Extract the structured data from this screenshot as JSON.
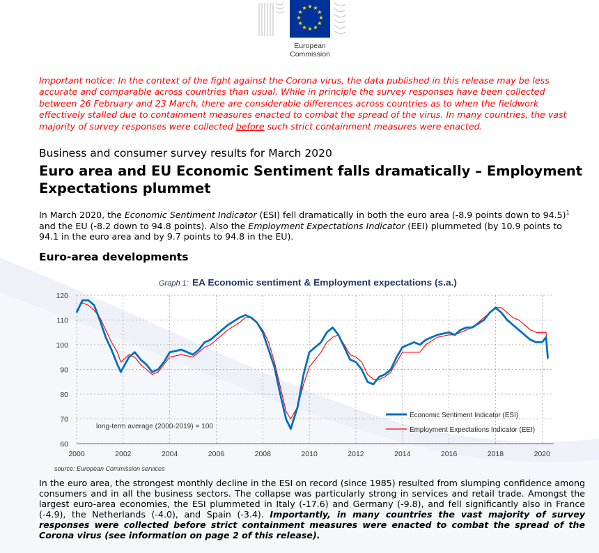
{
  "logo": {
    "line1": "European",
    "line2": "Commission",
    "flag_color": "#003399",
    "star_color": "#ffdd00"
  },
  "notice": {
    "part1": "Important notice: In the context of the fight against the Corona virus, the data published in this release may be less accurate and comparable across countries than usual. While in principle the survey responses have been collected between 26 February and 23 March, there are considerable differences across countries as to when the fieldwork effectively stalled due to containment measures enacted to combat the spread of the virus. In many countries, the vast majority of survey responses were collected ",
    "underlined": "before",
    "part2": " such strict containment measures were enacted."
  },
  "subtitle": "Business and consumer survey results for March 2020",
  "headline": "Euro area and EU Economic Sentiment falls dramatically – Employment Expectations plummet",
  "lead": {
    "t1": "In March 2020, the ",
    "i1": "Economic Sentiment Indicator",
    "t2": " (ESI) fell dramatically in both the euro area (-8.9 points down to 94.5)",
    "fn": "1",
    "t3": " and the EU (-8.2 down to 94.8 points). Also the ",
    "i2": "Employment Expectations Indicator",
    "t4": " (EEI) plummeted (by 10.9 points to 94.1 in the euro area and by 9.7 points to 94.8 in the EU)."
  },
  "section_title": "Euro-area developments",
  "chart_data": {
    "type": "line",
    "title_prefix": "Graph 1:",
    "title": "EA Economic sentiment & Employment expectations (s.a.)",
    "source": "source: European Commission services",
    "annotation": "long-term average (2000-2019) = 100",
    "x_ticks": [
      "2000",
      "2002",
      "2004",
      "2006",
      "2008",
      "2010",
      "2012",
      "2014",
      "2016",
      "2018",
      "2020"
    ],
    "y_ticks": [
      "60",
      "70",
      "80",
      "90",
      "100",
      "110",
      "120"
    ],
    "xlim": [
      2000,
      2020.5
    ],
    "ylim": [
      60,
      120
    ],
    "legend_position": "bottom-right",
    "series": [
      {
        "name": "Economic Sentiment Indicator (ESI)",
        "color": "#0070c0",
        "x": [
          2000.0,
          2000.25,
          2000.5,
          2000.75,
          2001.0,
          2001.25,
          2001.5,
          2001.75,
          2001.9,
          2002.25,
          2002.5,
          2002.75,
          2003.0,
          2003.25,
          2003.5,
          2003.75,
          2004.0,
          2004.5,
          2005.0,
          2005.25,
          2005.5,
          2005.75,
          2006.0,
          2006.5,
          2007.0,
          2007.25,
          2007.5,
          2007.75,
          2008.0,
          2008.25,
          2008.5,
          2008.75,
          2009.0,
          2009.2,
          2009.5,
          2009.75,
          2010.0,
          2010.5,
          2010.75,
          2011.0,
          2011.25,
          2011.5,
          2011.75,
          2012.0,
          2012.25,
          2012.5,
          2012.75,
          2013.0,
          2013.25,
          2013.5,
          2013.75,
          2014.0,
          2014.25,
          2014.5,
          2014.75,
          2015.0,
          2015.5,
          2016.0,
          2016.25,
          2016.5,
          2016.75,
          2017.0,
          2017.5,
          2017.75,
          2018.0,
          2018.25,
          2018.5,
          2018.75,
          2019.0,
          2019.25,
          2019.5,
          2019.75,
          2020.0,
          2020.17,
          2020.25
        ],
        "values": [
          113,
          118,
          118,
          116,
          110,
          103,
          98,
          92,
          89,
          95,
          97,
          94,
          92,
          89,
          90,
          93,
          97,
          98,
          96,
          98,
          101,
          102,
          104,
          108,
          111,
          112,
          111,
          109,
          105,
          98,
          91,
          80,
          70,
          66,
          75,
          88,
          97,
          101,
          105,
          107,
          104,
          99,
          94,
          93,
          90,
          85,
          84,
          87,
          88,
          90,
          95,
          99,
          100,
          101,
          100,
          102,
          104,
          105,
          104,
          106,
          107,
          107,
          110,
          113,
          115,
          113,
          110,
          108,
          106,
          104,
          102,
          101,
          101,
          103,
          94.5
        ]
      },
      {
        "name": "Employment Expectations Indicator (EEI)",
        "color": "#ff0000",
        "x": [
          2000.0,
          2000.25,
          2000.5,
          2000.75,
          2001.0,
          2001.25,
          2001.5,
          2001.75,
          2001.9,
          2002.25,
          2002.5,
          2002.75,
          2003.0,
          2003.25,
          2003.5,
          2003.75,
          2004.0,
          2004.5,
          2005.0,
          2005.25,
          2005.5,
          2005.75,
          2006.0,
          2006.5,
          2007.0,
          2007.25,
          2007.5,
          2007.75,
          2008.0,
          2008.25,
          2008.5,
          2008.75,
          2009.0,
          2009.2,
          2009.5,
          2009.75,
          2010.0,
          2010.5,
          2010.75,
          2011.0,
          2011.25,
          2011.5,
          2011.75,
          2012.0,
          2012.25,
          2012.5,
          2012.75,
          2013.0,
          2013.25,
          2013.5,
          2013.75,
          2014.0,
          2014.25,
          2014.5,
          2014.75,
          2015.0,
          2015.5,
          2016.0,
          2016.25,
          2016.5,
          2016.75,
          2017.0,
          2017.5,
          2017.75,
          2018.0,
          2018.25,
          2018.5,
          2018.75,
          2019.0,
          2019.25,
          2019.5,
          2019.75,
          2020.0,
          2020.17,
          2020.25
        ],
        "values": [
          114,
          117,
          116,
          114,
          111,
          106,
          101,
          97,
          93,
          96,
          95,
          92,
          90,
          88,
          89,
          92,
          95,
          96,
          95,
          97,
          99,
          100,
          102,
          106,
          109,
          111,
          111,
          109,
          106,
          101,
          93,
          83,
          73,
          70,
          75,
          84,
          91,
          97,
          101,
          103,
          104,
          100,
          96,
          95,
          93,
          88,
          86,
          86,
          87,
          89,
          93,
          97,
          97,
          97,
          97,
          100,
          103,
          104,
          104,
          105,
          106,
          107,
          111,
          113,
          115,
          115,
          113,
          111,
          110,
          108,
          106,
          105,
          105,
          105,
          94.1
        ]
      }
    ]
  },
  "body": {
    "p1": "In the euro area, the strongest monthly decline in the ESI on record (since 1985) resulted from slumping confidence among consumers and in all the business sectors. The collapse was particularly strong in services and retail trade. Amongst the largest euro-area economies, the ESI plummeted in Italy (-17.6) and Germany (-9.8), and fell significantly also in France (-4.9), the Netherlands (-4.0), and Spain (-3.4). ",
    "em": "Importantly, in many countries the vast majority of survey responses were collected before strict containment measures were enacted to combat the spread of the Corona virus (see information on page 2 of this release)."
  }
}
